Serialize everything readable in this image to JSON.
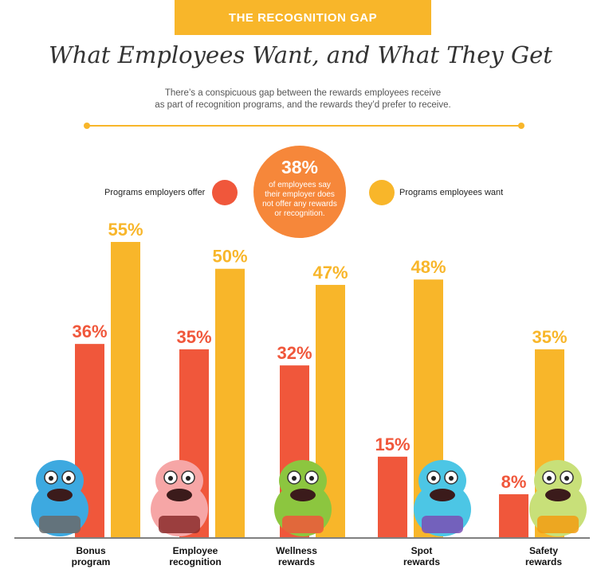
{
  "header": {
    "banner": "THE RECOGNITION GAP",
    "title": "What Employees Want, and What They Get",
    "subtitle_line1": "There’s a conspicuous gap between the rewards employees receive",
    "subtitle_line2": "as part of recognition programs, and the rewards they’d prefer to receive."
  },
  "callout": {
    "value": "38%",
    "text": "of employees say their employer does not offer any rewards or recognition."
  },
  "colors": {
    "offer": "#f0573b",
    "want": "#f8b62a",
    "callout": "#f6873a"
  },
  "chart_data": {
    "type": "bar",
    "categories": [
      "Bonus\nprogram",
      "Employee\nrecognition",
      "Wellness\nrewards",
      "Spot\nrewards",
      "Safety\nrewards"
    ],
    "series": [
      {
        "name": "Programs employers offer",
        "values": [
          36,
          35,
          32,
          15,
          8
        ],
        "labels": [
          "36%",
          "35%",
          "32%",
          "15%",
          "8%"
        ]
      },
      {
        "name": "Programs employees want",
        "values": [
          55,
          50,
          47,
          48,
          35
        ],
        "labels": [
          "55%",
          "50%",
          "47%",
          "48%",
          "35%"
        ]
      }
    ],
    "ylim": [
      0,
      55
    ],
    "legend": "top"
  },
  "mascots": [
    "money-monster-icon",
    "star-girl-icon",
    "dumbbell-monster-icon",
    "party-monster-icon",
    "hardhat-monster-icon"
  ]
}
